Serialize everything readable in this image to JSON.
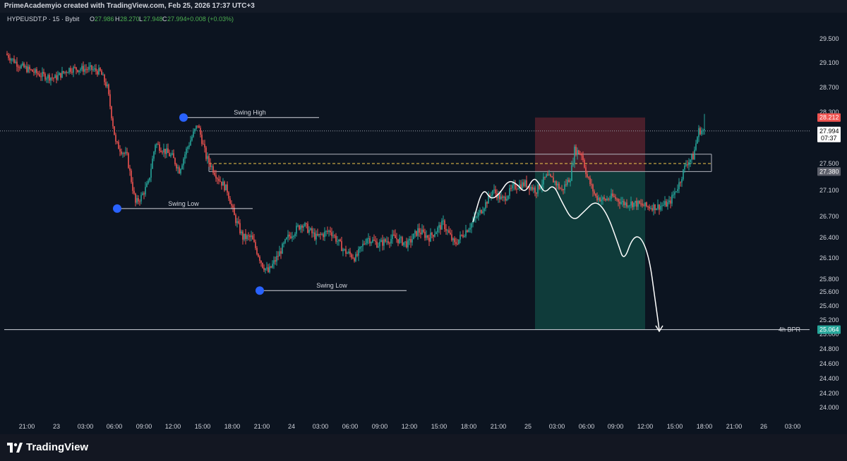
{
  "header": {
    "attribution": "PrimeAcademyio created with TradingView.com, Feb 25, 2026 17:37 UTC+3"
  },
  "symbol_info": {
    "symbol": "HYPEUSDT.P · 15 · Bybit",
    "open_label": "O",
    "open": "27.986",
    "high_label": "H",
    "high": "28.270",
    "low_label": "L",
    "low": "27.948",
    "close_label": "C",
    "close": "27.994",
    "change": "+0.008 (+0.03%)"
  },
  "annotations": {
    "swing_high": "Swing High",
    "swing_low_1": "Swing Low",
    "swing_low_2": "Swing Low",
    "bpr_label": "4h BPR"
  },
  "price_tags": {
    "stop": "28.212",
    "current": "27.994",
    "countdown": "07:37",
    "entry": "27.380",
    "target": "25.064"
  },
  "footer": {
    "brand": "TradingView"
  },
  "colors": {
    "background": "#0c1420",
    "up_candle": "#26a69a",
    "down_candle": "#ef5350",
    "stop_zone": "#4a1f2b",
    "target_zone": "#0f3b3a",
    "swing_marker": "#2962ff",
    "midline": "#f2c94c"
  },
  "chart_data": {
    "type": "candlestick",
    "title": "",
    "y_ticks": [
      "29.500",
      "29.100",
      "28.700",
      "28.300",
      "27.900",
      "27.500",
      "27.100",
      "26.700",
      "26.400",
      "26.100",
      "25.800",
      "25.600",
      "25.400",
      "25.200",
      "25.000",
      "24.800",
      "24.600",
      "24.400",
      "24.200",
      "24.000"
    ],
    "x_ticks": [
      "21:00",
      "23",
      "03:00",
      "06:00",
      "09:00",
      "12:00",
      "15:00",
      "18:00",
      "21:00",
      "24",
      "03:00",
      "06:00",
      "09:00",
      "12:00",
      "15:00",
      "18:00",
      "21:00",
      "25",
      "03:00",
      "06:00",
      "09:00",
      "12:00",
      "15:00",
      "18:00",
      "21:00",
      "26",
      "03:00"
    ],
    "ylim": [
      23.9,
      29.85
    ],
    "x_range_bars": [
      0,
      355
    ],
    "price_path": [
      [
        0,
        29.25
      ],
      [
        10,
        29.05
      ],
      [
        25,
        28.9
      ],
      [
        35,
        28.85
      ],
      [
        45,
        29.0
      ],
      [
        60,
        29.0
      ],
      [
        67,
        28.95
      ],
      [
        72,
        28.7
      ],
      [
        78,
        27.8
      ],
      [
        86,
        27.6
      ],
      [
        92,
        26.9
      ],
      [
        96,
        27.0
      ],
      [
        101,
        27.2
      ],
      [
        106,
        27.8
      ],
      [
        112,
        27.7
      ],
      [
        118,
        27.6
      ],
      [
        123,
        27.4
      ],
      [
        128,
        27.7
      ],
      [
        132,
        27.9
      ],
      [
        136,
        28.1
      ],
      [
        142,
        27.6
      ],
      [
        150,
        27.3
      ],
      [
        157,
        27.1
      ],
      [
        162,
        26.7
      ],
      [
        168,
        26.4
      ],
      [
        174,
        26.4
      ],
      [
        182,
        26.0
      ],
      [
        186,
        25.9
      ],
      [
        192,
        26.1
      ],
      [
        200,
        26.4
      ],
      [
        210,
        26.6
      ],
      [
        220,
        26.4
      ],
      [
        230,
        26.5
      ],
      [
        240,
        26.2
      ],
      [
        248,
        26.1
      ],
      [
        256,
        26.4
      ],
      [
        264,
        26.3
      ],
      [
        275,
        26.4
      ],
      [
        285,
        26.3
      ],
      [
        292,
        26.5
      ],
      [
        300,
        26.4
      ],
      [
        310,
        26.6
      ],
      [
        318,
        26.3
      ],
      [
        326,
        26.5
      ],
      [
        334,
        26.7
      ],
      [
        340,
        26.9
      ],
      [
        345,
        27.1
      ],
      [
        352,
        26.95
      ],
      [
        360,
        27.15
      ],
      [
        368,
        27.2
      ],
      [
        376,
        27.1
      ],
      [
        383,
        27.3
      ],
      [
        388,
        27.25
      ],
      [
        394,
        27.1
      ],
      [
        400,
        27.3
      ],
      [
        403,
        27.7
      ],
      [
        408,
        27.65
      ],
      [
        412,
        27.3
      ],
      [
        418,
        27.0
      ],
      [
        424,
        26.95
      ],
      [
        430,
        27.0
      ],
      [
        438,
        26.9
      ],
      [
        446,
        26.9
      ],
      [
        454,
        26.85
      ],
      [
        462,
        26.85
      ],
      [
        470,
        26.9
      ],
      [
        477,
        27.2
      ],
      [
        482,
        27.5
      ],
      [
        487,
        27.6
      ],
      [
        491,
        28.0
      ],
      [
        495,
        27.99
      ]
    ],
    "levels": {
      "swing_high": 28.212,
      "swing_low_1": 26.82,
      "swing_low_2": 25.62,
      "stop": 28.212,
      "entry": 27.38,
      "target": 25.064,
      "range_top": 27.64,
      "range_mid": 27.5,
      "range_bottom": 27.38
    },
    "projection": [
      [
        331,
        26.62
      ],
      [
        338,
        27.15
      ],
      [
        344,
        26.95
      ],
      [
        350,
        27.05
      ],
      [
        356,
        27.25
      ],
      [
        362,
        27.2
      ],
      [
        368,
        27.05
      ],
      [
        374,
        27.3
      ],
      [
        378,
        27.2
      ],
      [
        382,
        27.05
      ],
      [
        388,
        27.2
      ],
      [
        394,
        26.92
      ],
      [
        402,
        26.62
      ],
      [
        410,
        26.78
      ],
      [
        418,
        26.95
      ],
      [
        426,
        26.75
      ],
      [
        434,
        26.3
      ],
      [
        438,
        26.05
      ],
      [
        444,
        26.4
      ],
      [
        450,
        26.42
      ],
      [
        456,
        26.1
      ],
      [
        460,
        25.5
      ],
      [
        463,
        25.06
      ]
    ]
  }
}
